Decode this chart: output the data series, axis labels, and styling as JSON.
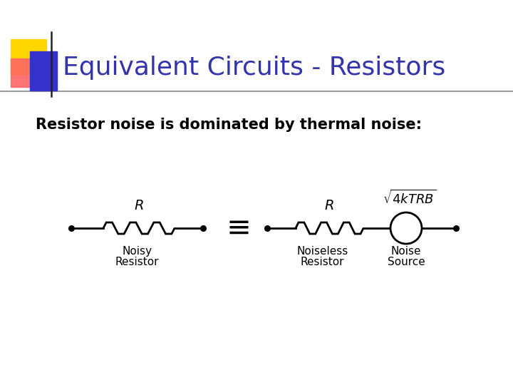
{
  "title": "Equivalent Circuits - Resistors",
  "title_color": "#3333aa",
  "title_fontsize": 26,
  "subtitle": "Resistor noise is dominated by thermal noise:",
  "subtitle_fontsize": 15,
  "bg_color": "#ffffff",
  "header_line_color": "#888888",
  "equiv_symbol": "≡",
  "noisy_label": [
    "Noisy",
    "Resistor"
  ],
  "noiseless_label": [
    "Noiseless",
    "Resistor"
  ],
  "noise_source_label": [
    "Noise",
    "Source"
  ],
  "R_label": "R",
  "formula": "$\\sqrt{4kTRB}$",
  "corner_colors": {
    "yellow": "#FFD700",
    "red": "#FF6666",
    "blue": "#3333cc"
  }
}
